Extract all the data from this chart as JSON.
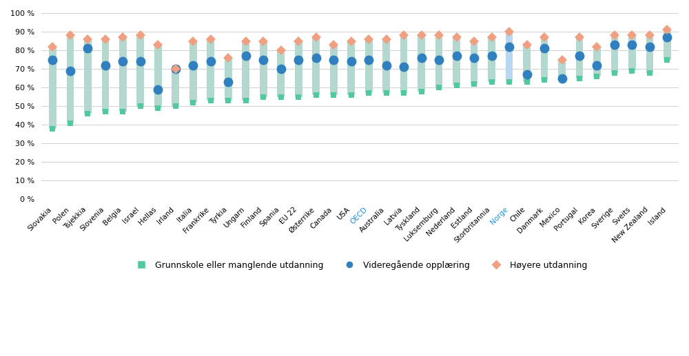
{
  "countries": [
    "Slovakia",
    "Polen",
    "Tsjekkia",
    "Slovenia",
    "Belgia",
    "Israel",
    "Hellas",
    "Irland",
    "Italia",
    "Frankrike",
    "Tyrkia",
    "Ungarn",
    "Finland",
    "Spania",
    "EU 22",
    "Østerrike",
    "Canada",
    "USA",
    "OECD",
    "Australia",
    "Latvia",
    "Tyskland",
    "Luksemburg",
    "Nederland",
    "Estland",
    "Storbritannia",
    "Norge",
    "Chile",
    "Danmark",
    "Mexico",
    "Portugal",
    "Korea",
    "Sverige",
    "Sveits",
    "New Zealand",
    "Island"
  ],
  "grunnskole": [
    38,
    41,
    46,
    47,
    47,
    50,
    49,
    50,
    52,
    53,
    53,
    53,
    55,
    55,
    55,
    56,
    56,
    56,
    57,
    57,
    57,
    58,
    60,
    61,
    62,
    63,
    63,
    63,
    64,
    65,
    65,
    66,
    68,
    69,
    68,
    75
  ],
  "videregaende": [
    75,
    69,
    81,
    72,
    74,
    74,
    59,
    70,
    72,
    74,
    63,
    77,
    75,
    70,
    75,
    76,
    75,
    74,
    75,
    72,
    71,
    76,
    75,
    77,
    76,
    77,
    82,
    67,
    81,
    65,
    77,
    72,
    83,
    83,
    82,
    87
  ],
  "hoyere": [
    82,
    88,
    86,
    86,
    87,
    88,
    83,
    70,
    85,
    86,
    76,
    85,
    85,
    80,
    85,
    87,
    83,
    85,
    86,
    86,
    88,
    88,
    88,
    87,
    85,
    87,
    90,
    83,
    87,
    75,
    87,
    82,
    88,
    88,
    88,
    91
  ],
  "bar_color": "#b2d8d0",
  "norge_bar_color": "#b8d8f0",
  "dot_color": "#3080c0",
  "diamond_color": "#f0a080",
  "grunnskole_color": "#50c8a0",
  "norge_label_color": "#2090dd",
  "oecd_label_color": "#2090dd",
  "ylim": [
    0,
    100
  ],
  "yticks": [
    0,
    10,
    20,
    30,
    40,
    50,
    60,
    70,
    80,
    90,
    100
  ],
  "legend_labels": [
    "Grunnskole eller manglende utdanning",
    "Videregående opplæring",
    "Høyere utdanning"
  ],
  "legend_colors": [
    "#50c8a0",
    "#3080c0",
    "#f0a080"
  ],
  "legend_marker_types": [
    "s",
    "o",
    "D"
  ]
}
